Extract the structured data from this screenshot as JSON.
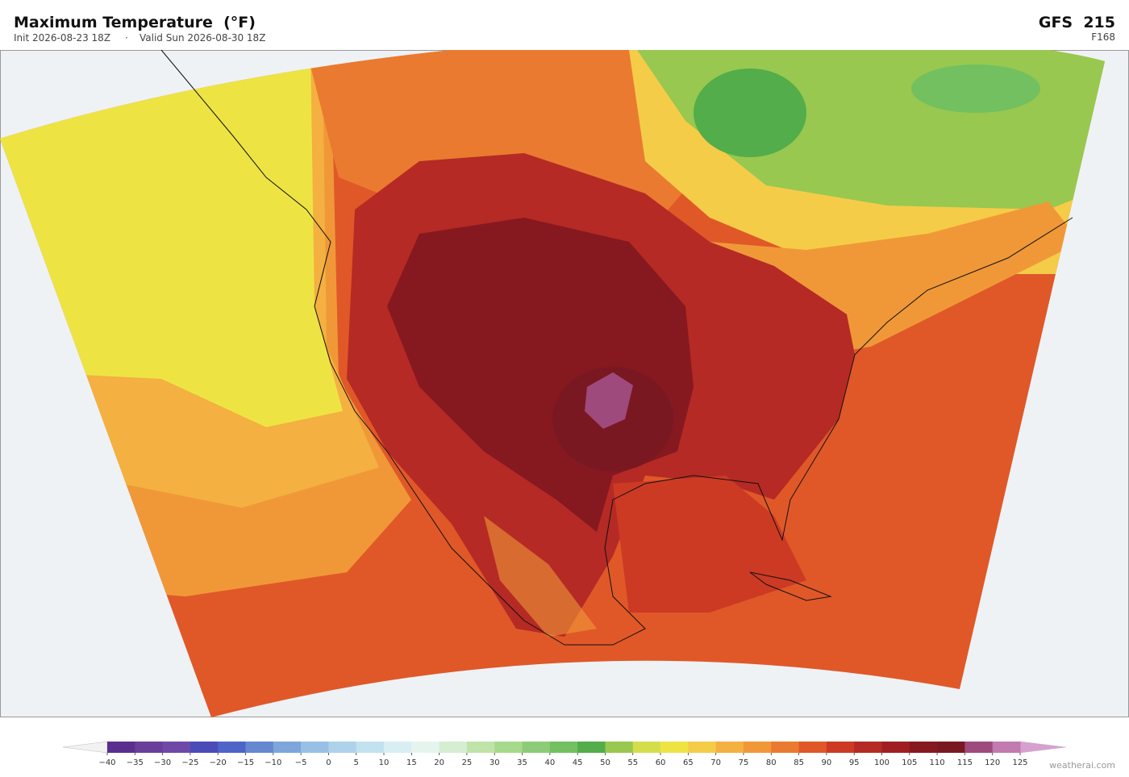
{
  "header": {
    "title": "Maximum Temperature  (°F)",
    "init": "Init 2026-08-23 18Z",
    "separator": "·",
    "valid": "Valid Sun 2026-08-30 18Z",
    "model": "GFS  215",
    "forecast_hour": "F168"
  },
  "colorbar": {
    "ticks": [
      {
        "value": -40,
        "label": "−40"
      },
      {
        "value": -35,
        "label": "−35"
      },
      {
        "value": -30,
        "label": "−30"
      },
      {
        "value": -25,
        "label": "−25"
      },
      {
        "value": -20,
        "label": "−20"
      },
      {
        "value": -15,
        "label": "−15"
      },
      {
        "value": -10,
        "label": "−10"
      },
      {
        "value": -5,
        "label": "−5"
      },
      0,
      5,
      10,
      15,
      20,
      25,
      30,
      35,
      40,
      45,
      50,
      55,
      60,
      65,
      70,
      75,
      80,
      85,
      90,
      95,
      100,
      105,
      110,
      115,
      120,
      125
    ],
    "colors": [
      "#5b2d8e",
      "#6a3d9a",
      "#7048a8",
      "#4a4bb8",
      "#4f64c8",
      "#6688d0",
      "#7ea6dc",
      "#98c0e4",
      "#aed2ea",
      "#c3e2ef",
      "#d8eef2",
      "#e6f4ee",
      "#d5edd0",
      "#bfe3a8",
      "#a6d98c",
      "#8ccc78",
      "#72c060",
      "#52ad4a",
      "#98c850",
      "#d4de4c",
      "#ede444",
      "#f5cc48",
      "#f4b040",
      "#f09838",
      "#ea7a30",
      "#e05828",
      "#cc3a24",
      "#b52a24",
      "#a01e22",
      "#861820",
      "#7a1822",
      "#9e4a7c",
      "#c27ab0"
    ],
    "under_color": "#f2f2f2",
    "over_color": "#d8a0d0"
  },
  "footer": {
    "credit": "weatherai.com"
  }
}
